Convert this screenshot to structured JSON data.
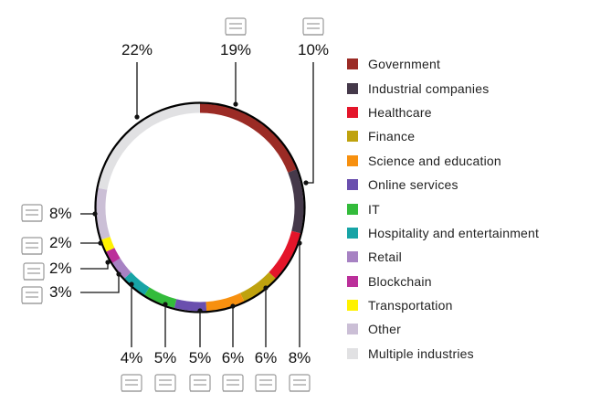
{
  "chart_data": {
    "type": "pie",
    "variant": "donut",
    "start": "top, clockwise",
    "slices": [
      {
        "label": "Government",
        "value": 19,
        "pct_label": "19%",
        "color": "#9b2b25",
        "icon": "government-building-icon"
      },
      {
        "label": "Industrial companies",
        "value": 10,
        "pct_label": "10%",
        "color": "#45394a",
        "icon": "factory-icon"
      },
      {
        "label": "Healthcare",
        "value": 8,
        "pct_label": "8%",
        "color": "#e4152a",
        "icon": "heart-pulse-icon"
      },
      {
        "label": "Finance",
        "value": 6,
        "pct_label": "6%",
        "color": "#bfa20e",
        "icon": "safe-icon"
      },
      {
        "label": "Science and education",
        "value": 6,
        "pct_label": "6%",
        "color": "#f7900f",
        "icon": "microscope-icon"
      },
      {
        "label": "Online services",
        "value": 5,
        "pct_label": "5%",
        "color": "#6a4fae",
        "icon": "globe-icon"
      },
      {
        "label": "IT",
        "value": 5,
        "pct_label": "5%",
        "color": "#33bb3b",
        "icon": "network-icon"
      },
      {
        "label": "Hospitality and entertainment",
        "value": 4,
        "pct_label": "4%",
        "color": "#17a4a6",
        "icon": "service-bell-icon"
      },
      {
        "label": "Retail",
        "value": 3,
        "pct_label": "3%",
        "color": "#a782c3",
        "icon": "payment-card-icon"
      },
      {
        "label": "Blockchain",
        "value": 2,
        "pct_label": "2%",
        "color": "#bb2f9a",
        "icon": "bitcoin-icon"
      },
      {
        "label": "Transportation",
        "value": 2,
        "pct_label": "2%",
        "color": "#fff200",
        "icon": "train-icon"
      },
      {
        "label": "Other",
        "value": 8,
        "pct_label": "8%",
        "color": "#cbbfd6",
        "icon": "buildings-icon"
      },
      {
        "label": "Multiple industries",
        "value": 22,
        "pct_label": "22%",
        "color": "#e1e1e3",
        "icon": ""
      }
    ],
    "legend_position": "right"
  }
}
